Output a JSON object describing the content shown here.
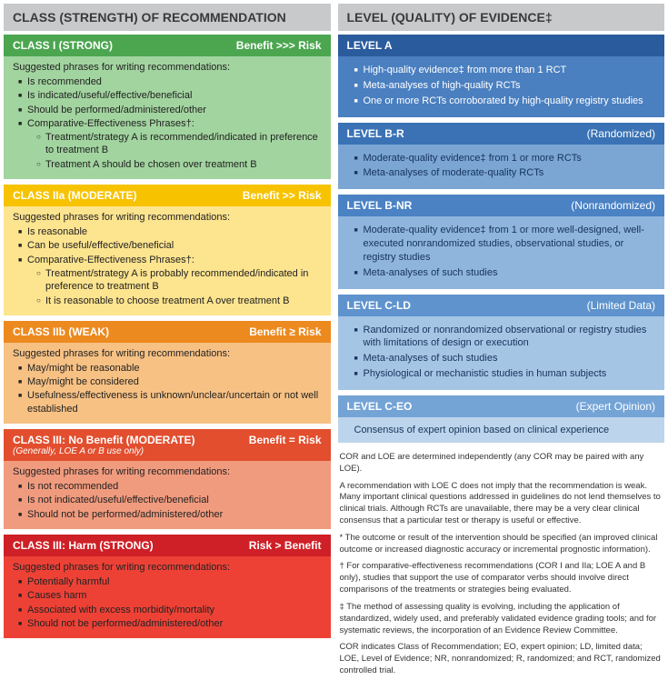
{
  "left": {
    "title": "CLASS (STRENGTH) OF RECOMMENDATION",
    "classes": [
      {
        "header_bg": "#4ba64f",
        "body_bg": "#a2d49f",
        "name": "CLASS I  (STRONG)",
        "sub": "",
        "risk": "Benefit >>> Risk",
        "intro": "Suggested phrases for writing recommendations:",
        "items": [
          {
            "t": "Is recommended"
          },
          {
            "t": "Is indicated/useful/effective/beneficial"
          },
          {
            "t": "Should be performed/administered/other"
          },
          {
            "t": "Comparative-Effectiveness Phrases†:",
            "sub": [
              {
                "t": "Treatment/strategy A is recommended/indicated in preference to treatment B"
              },
              {
                "t": "Treatment A should be chosen over treatment B"
              }
            ]
          }
        ]
      },
      {
        "header_bg": "#f7c300",
        "body_bg": "#fde48f",
        "name": "CLASS IIa  (MODERATE)",
        "sub": "",
        "risk": "Benefit >> Risk",
        "intro": "Suggested phrases for writing recommendations:",
        "items": [
          {
            "t": "Is reasonable"
          },
          {
            "t": "Can be useful/effective/beneficial"
          },
          {
            "t": "Comparative-Effectiveness Phrases†:",
            "sub": [
              {
                "t": "Treatment/strategy A is probably recommended/indicated in preference to treatment B"
              },
              {
                "t": "It is reasonable to choose treatment A over treatment B"
              }
            ]
          }
        ]
      },
      {
        "header_bg": "#ec8a1f",
        "body_bg": "#f7c184",
        "name": "CLASS IIb  (WEAK)",
        "sub": "",
        "risk": "Benefit ≥ Risk",
        "intro": "Suggested phrases for writing recommendations:",
        "items": [
          {
            "t": "May/might be reasonable"
          },
          {
            "t": "May/might be considered"
          },
          {
            "t": "Usefulness/effectiveness is unknown/unclear/uncertain or not well established"
          }
        ]
      },
      {
        "header_bg": "#e24e2e",
        "body_bg": "#f19b7e",
        "name": "CLASS III: No Benefit  (MODERATE)",
        "sub": "(Generally, LOE A or B use only)",
        "risk": "Benefit = Risk",
        "intro": "Suggested phrases for writing recommendations:",
        "items": [
          {
            "t": "Is not recommended"
          },
          {
            "t": "Is not indicated/useful/effective/beneficial"
          },
          {
            "t": "Should not be performed/administered/other"
          }
        ]
      },
      {
        "header_bg": "#cf2027",
        "body_bg": "#ee4136",
        "name": "CLASS III: Harm  (STRONG)",
        "sub": "",
        "risk": "Risk > Benefit",
        "intro": "Suggested phrases for writing recommendations:",
        "items": [
          {
            "t": "Potentially harmful"
          },
          {
            "t": "Causes harm"
          },
          {
            "t": "Associated with excess morbidity/mortality"
          },
          {
            "t": "Should not be performed/administered/other"
          }
        ]
      }
    ]
  },
  "right": {
    "title": "LEVEL (QUALITY) OF EVIDENCE‡",
    "levels": [
      {
        "header_bg": "#2a5b9d",
        "body_bg": "#4a7fc0",
        "body_color": "#ffffff",
        "name": "LEVEL A",
        "qual": "",
        "plain": "",
        "items": [
          {
            "t": "High-quality evidence‡ from more than 1 RCT"
          },
          {
            "t": "Meta-analyses of high-quality RCTs"
          },
          {
            "t": "One or more RCTs corroborated by high-quality registry studies"
          }
        ]
      },
      {
        "header_bg": "#3a72b5",
        "body_bg": "#7ba6d4",
        "body_color": "#16335b",
        "name": "LEVEL B-R",
        "qual": "(Randomized)",
        "plain": "",
        "items": [
          {
            "t": "Moderate-quality evidence‡ from 1 or more RCTs"
          },
          {
            "t": "Meta-analyses of moderate-quality RCTs"
          }
        ]
      },
      {
        "header_bg": "#4a82c4",
        "body_bg": "#8fb5dd",
        "body_color": "#16335b",
        "name": "LEVEL B-NR",
        "qual": "(Nonrandomized)",
        "plain": "",
        "items": [
          {
            "t": "Moderate-quality evidence‡ from 1 or more well-designed, well-executed nonrandomized studies, observational studies, or registry studies"
          },
          {
            "t": "Meta-analyses of such studies"
          }
        ]
      },
      {
        "header_bg": "#5e93cd",
        "body_bg": "#a5c5e5",
        "body_color": "#16335b",
        "name": "LEVEL C-LD",
        "qual": "(Limited Data)",
        "plain": "",
        "items": [
          {
            "t": "Randomized or nonrandomized observational or registry studies with limitations of design or execution"
          },
          {
            "t": "Meta-analyses of such studies"
          },
          {
            "t": "Physiological or mechanistic studies in human subjects"
          }
        ]
      },
      {
        "header_bg": "#74a3d6",
        "body_bg": "#bdd5ec",
        "body_color": "#16335b",
        "name": "LEVEL C-EO",
        "qual": "(Expert Opinion)",
        "plain": "Consensus of expert opinion based on clinical experience",
        "items": []
      }
    ],
    "footnotes": [
      "COR and LOE are determined independently (any COR may be paired with any LOE).",
      "A recommendation with LOE C does not imply that the recommendation is weak. Many important clinical questions addressed in guidelines do not lend themselves to clinical trials. Although RCTs are unavailable, there may be a very clear clinical consensus that a particular test or therapy is useful or effective.",
      "* The outcome or result of the intervention should be specified (an improved clinical outcome or increased diagnostic accuracy or incremental prognostic information).",
      "† For comparative-effectiveness recommendations (COR I and IIa; LOE A and B only), studies that support the use of comparator verbs should involve direct comparisons of the treatments or strategies being evaluated.",
      "‡ The method of assessing quality is evolving, including the application of standardized, widely used, and preferably validated evidence grading tools; and for systematic reviews, the incorporation of an Evidence Review Committee.",
      "COR indicates Class of Recommendation; EO, expert opinion; LD, limited data; LOE, Level of Evidence; NR, nonrandomized; R, randomized; and RCT, randomized controlled trial."
    ]
  }
}
